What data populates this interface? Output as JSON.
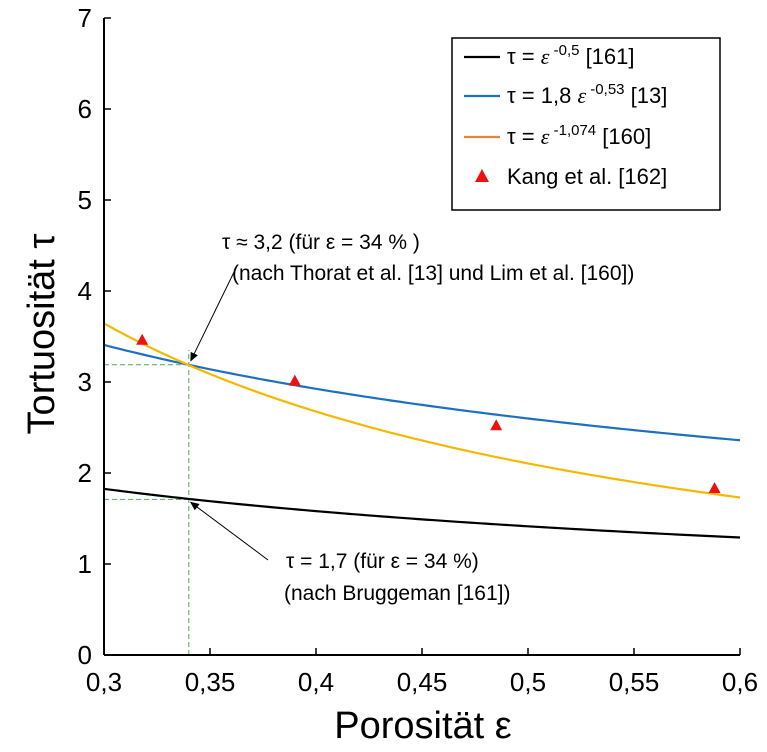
{
  "chart_data": {
    "type": "line",
    "xlabel": "Porosität ε",
    "ylabel": "Tortuosität τ",
    "xlim": [
      0.3,
      0.6
    ],
    "ylim": [
      0,
      7
    ],
    "x_ticks": [
      "0,3",
      "0,35",
      "0,4",
      "0,45",
      "0,5",
      "0,55",
      "0,6"
    ],
    "y_ticks": [
      "0",
      "1",
      "2",
      "3",
      "4",
      "5",
      "6",
      "7"
    ],
    "grid": false,
    "legend_position": "top-right",
    "series": [
      {
        "name": "τ = ε ^-0,5 [161]",
        "formula": {
          "a": 1.0,
          "b": -0.5
        },
        "color": "#000000",
        "legend": {
          "lhs": "τ = ",
          "base": "ε",
          "exp": "-0,5",
          "ref": "[161]"
        }
      },
      {
        "name": "τ = 1,8 ε ^-0,53 [13]",
        "formula": {
          "a": 1.8,
          "b": -0.53
        },
        "color": "#1f6fc0",
        "legend": {
          "lhs": "τ = 1,8 ",
          "base": "ε",
          "exp": "-0,53",
          "ref": "[13]"
        }
      },
      {
        "name": "τ = ε ^-1,074 [160]",
        "formula": {
          "a": 1.0,
          "b": -1.074
        },
        "color": "#f5b800",
        "legend_color": "#e8823a",
        "legend": {
          "lhs": "τ = ",
          "base": "ε",
          "exp": "-1,074",
          "ref": "[160]"
        }
      }
    ],
    "scatter": {
      "name": "Kang et al. [162]",
      "color": "#ee1111",
      "points": [
        {
          "x": 0.318,
          "y": 3.47
        },
        {
          "x": 0.39,
          "y": 3.02
        },
        {
          "x": 0.485,
          "y": 2.53
        },
        {
          "x": 0.588,
          "y": 1.84
        }
      ]
    },
    "annotations": [
      {
        "line1": "τ ≈ 3,2 (für ε = 34 % )",
        "line2": "(nach Thorat et al. [13] und Lim et al. [160])",
        "target": {
          "x": 0.34,
          "y": 3.19
        }
      },
      {
        "line1": "τ = 1,7 (für ε = 34 %)",
        "line2": "(nach Bruggeman [161])",
        "target": {
          "x": 0.34,
          "y": 1.71
        }
      }
    ],
    "guide_lines": [
      {
        "x": 0.34,
        "y": 3.19,
        "color": "#4caf50"
      },
      {
        "x": 0.34,
        "y": 1.71,
        "color": "#4caf50"
      }
    ]
  }
}
